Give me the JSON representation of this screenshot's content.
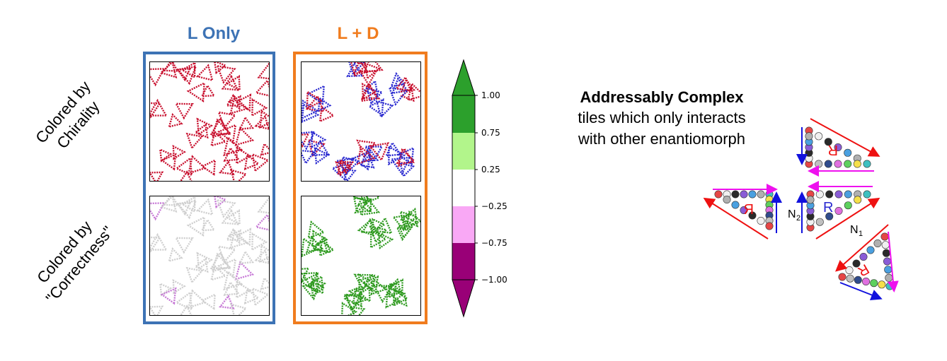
{
  "columns": {
    "l_only": {
      "title": "L Only",
      "color": "#3d73b5"
    },
    "l_plus_d": {
      "title": "L + D",
      "color": "#f07c1e"
    }
  },
  "rows": {
    "chirality": {
      "line1": "Colored by",
      "line2": "Chirality"
    },
    "correctness": {
      "line1": "Colored by",
      "line2": "\"Correctness\""
    }
  },
  "colorbar": {
    "ticks": [
      "1.00",
      "0.75",
      "0.25",
      "−0.25",
      "−0.75",
      "−1.00"
    ],
    "colors": {
      "top": "#2ca02c",
      "upper": "#b2f58b",
      "mid": "#ffffff",
      "lower": "#f9a8f5",
      "bottom": "#990077"
    }
  },
  "description": {
    "title": "Addressably Complex",
    "line1": "tiles which only interacts",
    "line2": "with other enantiomorph"
  },
  "tile_labels": {
    "r_upright": "R",
    "r_mirrored": "R",
    "r_flipped_top": "R",
    "r_flipped_bottom": "R",
    "n1": "N",
    "n1_sub": "1",
    "n2": "N",
    "n2_sub": "2"
  },
  "colors": {
    "red": "#c8102e",
    "blue": "#2a2ad0",
    "gray": "#cfcfcf",
    "violet": "#c77ad6",
    "green": "#2e9a1f",
    "arrow_red": "#ee1111",
    "arrow_blue": "#1111dd",
    "arrow_magenta": "#ee11ee"
  }
}
